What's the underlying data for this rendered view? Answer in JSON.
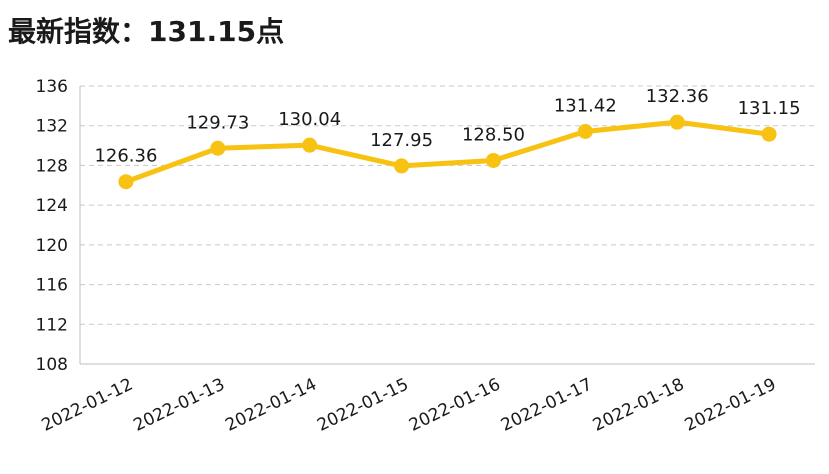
{
  "header": {
    "title_prefix": "最新指数：",
    "title_value": "131.15",
    "title_suffix": "点"
  },
  "colors": {
    "line": "#F7C211",
    "grid": "#C8C8C8",
    "axis": "#BFBFBF"
  },
  "chart_data": {
    "type": "line",
    "title": "",
    "xlabel": "",
    "ylabel": "",
    "categories": [
      "2022-01-12",
      "2022-01-13",
      "2022-01-14",
      "2022-01-15",
      "2022-01-16",
      "2022-01-17",
      "2022-01-18",
      "2022-01-19"
    ],
    "values": [
      126.36,
      129.73,
      130.04,
      127.95,
      128.5,
      131.42,
      132.36,
      131.15
    ],
    "value_labels": [
      "126.36",
      "129.73",
      "130.04",
      "127.95",
      "128.50",
      "131.42",
      "132.36",
      "131.15"
    ],
    "ylim": [
      108,
      136
    ],
    "yticks": [
      "108",
      "112",
      "116",
      "120",
      "124",
      "128",
      "132",
      "136"
    ],
    "grid": "horizontal-dashed",
    "legend": "none"
  }
}
